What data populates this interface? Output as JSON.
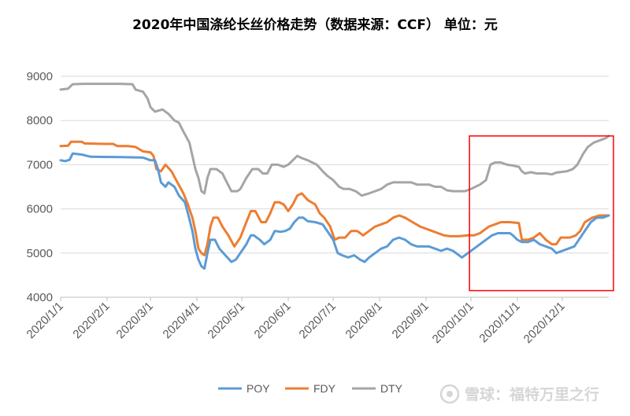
{
  "chart_data": {
    "type": "line",
    "title": "2020年中国涤纶长丝价格走势（数据来源：CCF）    单位：元",
    "xlabel": "",
    "ylabel": "",
    "ylim": [
      4000,
      9000
    ],
    "yticks": [
      4000,
      5000,
      6000,
      7000,
      8000,
      9000
    ],
    "x_categories": [
      "2020/1/1",
      "2020/2/1",
      "2020/3/1",
      "2020/4/1",
      "2020/5/1",
      "2020/6/1",
      "2020/7/1",
      "2020/8/1",
      "2020/9/1",
      "2020/10/1",
      "2020/11/1",
      "2020/12/1"
    ],
    "x_domain_days": [
      0,
      366
    ],
    "x_tick_days": [
      0,
      31,
      60,
      91,
      121,
      152,
      182,
      213,
      244,
      274,
      305,
      335
    ],
    "legend_position": "bottom",
    "grid": true,
    "series": [
      {
        "name": "POY",
        "color": "#5B9BD5",
        "points": [
          [
            0,
            7100
          ],
          [
            3,
            7080
          ],
          [
            6,
            7110
          ],
          [
            8,
            7250
          ],
          [
            14,
            7230
          ],
          [
            20,
            7180
          ],
          [
            40,
            7170
          ],
          [
            55,
            7160
          ],
          [
            60,
            7100
          ],
          [
            63,
            7100
          ],
          [
            65,
            6900
          ],
          [
            67,
            6600
          ],
          [
            70,
            6500
          ],
          [
            72,
            6600
          ],
          [
            76,
            6500
          ],
          [
            79,
            6300
          ],
          [
            83,
            6150
          ],
          [
            85,
            5900
          ],
          [
            88,
            5500
          ],
          [
            90,
            5100
          ],
          [
            92,
            4850
          ],
          [
            94,
            4700
          ],
          [
            96,
            4650
          ],
          [
            98,
            5000
          ],
          [
            100,
            5300
          ],
          [
            103,
            5300
          ],
          [
            106,
            5100
          ],
          [
            110,
            4950
          ],
          [
            114,
            4800
          ],
          [
            117,
            4850
          ],
          [
            120,
            5000
          ],
          [
            124,
            5200
          ],
          [
            127,
            5400
          ],
          [
            129,
            5400
          ],
          [
            133,
            5300
          ],
          [
            136,
            5200
          ],
          [
            140,
            5300
          ],
          [
            143,
            5500
          ],
          [
            147,
            5480
          ],
          [
            150,
            5500
          ],
          [
            153,
            5550
          ],
          [
            156,
            5700
          ],
          [
            159,
            5800
          ],
          [
            162,
            5800
          ],
          [
            165,
            5720
          ],
          [
            170,
            5700
          ],
          [
            175,
            5650
          ],
          [
            178,
            5500
          ],
          [
            182,
            5300
          ],
          [
            185,
            5000
          ],
          [
            188,
            4950
          ],
          [
            192,
            4900
          ],
          [
            196,
            4950
          ],
          [
            200,
            4850
          ],
          [
            203,
            4800
          ],
          [
            206,
            4900
          ],
          [
            210,
            5000
          ],
          [
            214,
            5100
          ],
          [
            218,
            5150
          ],
          [
            222,
            5300
          ],
          [
            226,
            5350
          ],
          [
            230,
            5300
          ],
          [
            234,
            5200
          ],
          [
            238,
            5150
          ],
          [
            242,
            5150
          ],
          [
            246,
            5150
          ],
          [
            250,
            5100
          ],
          [
            254,
            5050
          ],
          [
            258,
            5100
          ],
          [
            262,
            5050
          ],
          [
            266,
            4950
          ],
          [
            268,
            4900
          ],
          [
            272,
            5000
          ],
          [
            276,
            5100
          ],
          [
            280,
            5200
          ],
          [
            284,
            5300
          ],
          [
            288,
            5400
          ],
          [
            292,
            5450
          ],
          [
            296,
            5450
          ],
          [
            300,
            5450
          ],
          [
            302,
            5400
          ],
          [
            305,
            5300
          ],
          [
            308,
            5250
          ],
          [
            312,
            5250
          ],
          [
            316,
            5300
          ],
          [
            320,
            5200
          ],
          [
            324,
            5150
          ],
          [
            328,
            5100
          ],
          [
            331,
            5000
          ],
          [
            335,
            5050
          ],
          [
            339,
            5100
          ],
          [
            343,
            5150
          ],
          [
            346,
            5300
          ],
          [
            350,
            5500
          ],
          [
            354,
            5700
          ],
          [
            358,
            5800
          ],
          [
            362,
            5800
          ],
          [
            366,
            5850
          ]
        ]
      },
      {
        "name": "FDY",
        "color": "#ED7D31",
        "points": [
          [
            0,
            7420
          ],
          [
            5,
            7430
          ],
          [
            7,
            7520
          ],
          [
            14,
            7520
          ],
          [
            16,
            7480
          ],
          [
            30,
            7470
          ],
          [
            35,
            7470
          ],
          [
            38,
            7420
          ],
          [
            45,
            7420
          ],
          [
            50,
            7400
          ],
          [
            55,
            7300
          ],
          [
            60,
            7280
          ],
          [
            62,
            7200
          ],
          [
            64,
            6900
          ],
          [
            67,
            6850
          ],
          [
            70,
            7000
          ],
          [
            74,
            6850
          ],
          [
            78,
            6600
          ],
          [
            82,
            6350
          ],
          [
            85,
            6100
          ],
          [
            88,
            5800
          ],
          [
            90,
            5500
          ],
          [
            92,
            5100
          ],
          [
            94,
            5000
          ],
          [
            96,
            4950
          ],
          [
            98,
            5200
          ],
          [
            100,
            5600
          ],
          [
            102,
            5800
          ],
          [
            105,
            5800
          ],
          [
            108,
            5600
          ],
          [
            112,
            5400
          ],
          [
            116,
            5150
          ],
          [
            120,
            5350
          ],
          [
            124,
            5700
          ],
          [
            127,
            5950
          ],
          [
            130,
            5950
          ],
          [
            134,
            5700
          ],
          [
            137,
            5700
          ],
          [
            140,
            5900
          ],
          [
            143,
            6150
          ],
          [
            146,
            6150
          ],
          [
            149,
            6100
          ],
          [
            152,
            5950
          ],
          [
            155,
            6100
          ],
          [
            158,
            6300
          ],
          [
            161,
            6350
          ],
          [
            165,
            6200
          ],
          [
            170,
            6100
          ],
          [
            173,
            5900
          ],
          [
            176,
            5800
          ],
          [
            180,
            5600
          ],
          [
            183,
            5300
          ],
          [
            186,
            5350
          ],
          [
            190,
            5350
          ],
          [
            194,
            5500
          ],
          [
            198,
            5500
          ],
          [
            202,
            5400
          ],
          [
            206,
            5500
          ],
          [
            210,
            5600
          ],
          [
            214,
            5650
          ],
          [
            218,
            5700
          ],
          [
            222,
            5800
          ],
          [
            226,
            5850
          ],
          [
            230,
            5800
          ],
          [
            235,
            5700
          ],
          [
            240,
            5600
          ],
          [
            244,
            5550
          ],
          [
            248,
            5500
          ],
          [
            252,
            5450
          ],
          [
            256,
            5400
          ],
          [
            260,
            5380
          ],
          [
            266,
            5380
          ],
          [
            272,
            5400
          ],
          [
            276,
            5400
          ],
          [
            280,
            5450
          ],
          [
            286,
            5600
          ],
          [
            290,
            5650
          ],
          [
            294,
            5700
          ],
          [
            300,
            5700
          ],
          [
            306,
            5680
          ],
          [
            308,
            5300
          ],
          [
            312,
            5300
          ],
          [
            316,
            5350
          ],
          [
            320,
            5450
          ],
          [
            324,
            5300
          ],
          [
            328,
            5200
          ],
          [
            331,
            5200
          ],
          [
            334,
            5350
          ],
          [
            340,
            5350
          ],
          [
            344,
            5400
          ],
          [
            347,
            5500
          ],
          [
            350,
            5700
          ],
          [
            355,
            5800
          ],
          [
            360,
            5850
          ],
          [
            366,
            5850
          ]
        ]
      },
      {
        "name": "DTY",
        "color": "#A5A5A5",
        "points": [
          [
            0,
            8700
          ],
          [
            5,
            8720
          ],
          [
            8,
            8820
          ],
          [
            15,
            8830
          ],
          [
            30,
            8830
          ],
          [
            40,
            8830
          ],
          [
            48,
            8820
          ],
          [
            50,
            8700
          ],
          [
            55,
            8650
          ],
          [
            58,
            8500
          ],
          [
            60,
            8300
          ],
          [
            63,
            8200
          ],
          [
            68,
            8250
          ],
          [
            72,
            8150
          ],
          [
            76,
            8000
          ],
          [
            79,
            7950
          ],
          [
            82,
            7750
          ],
          [
            86,
            7500
          ],
          [
            88,
            7200
          ],
          [
            90,
            6900
          ],
          [
            92,
            6700
          ],
          [
            94,
            6400
          ],
          [
            96,
            6350
          ],
          [
            98,
            6700
          ],
          [
            100,
            6900
          ],
          [
            104,
            6900
          ],
          [
            108,
            6800
          ],
          [
            111,
            6600
          ],
          [
            114,
            6400
          ],
          [
            118,
            6400
          ],
          [
            120,
            6450
          ],
          [
            124,
            6700
          ],
          [
            128,
            6900
          ],
          [
            132,
            6900
          ],
          [
            135,
            6800
          ],
          [
            138,
            6800
          ],
          [
            141,
            7000
          ],
          [
            145,
            7000
          ],
          [
            149,
            6950
          ],
          [
            152,
            7000
          ],
          [
            155,
            7100
          ],
          [
            158,
            7200
          ],
          [
            161,
            7150
          ],
          [
            165,
            7100
          ],
          [
            168,
            7050
          ],
          [
            171,
            7000
          ],
          [
            175,
            6850
          ],
          [
            178,
            6750
          ],
          [
            182,
            6650
          ],
          [
            186,
            6500
          ],
          [
            189,
            6450
          ],
          [
            193,
            6450
          ],
          [
            197,
            6400
          ],
          [
            201,
            6300
          ],
          [
            206,
            6350
          ],
          [
            210,
            6400
          ],
          [
            214,
            6450
          ],
          [
            218,
            6550
          ],
          [
            222,
            6600
          ],
          [
            226,
            6600
          ],
          [
            230,
            6600
          ],
          [
            234,
            6600
          ],
          [
            238,
            6550
          ],
          [
            242,
            6550
          ],
          [
            246,
            6550
          ],
          [
            250,
            6500
          ],
          [
            254,
            6500
          ],
          [
            258,
            6420
          ],
          [
            262,
            6400
          ],
          [
            266,
            6400
          ],
          [
            270,
            6400
          ],
          [
            274,
            6450
          ],
          [
            280,
            6550
          ],
          [
            284,
            6650
          ],
          [
            287,
            7000
          ],
          [
            290,
            7050
          ],
          [
            294,
            7050
          ],
          [
            298,
            7000
          ],
          [
            302,
            6980
          ],
          [
            306,
            6950
          ],
          [
            308,
            6850
          ],
          [
            310,
            6800
          ],
          [
            314,
            6830
          ],
          [
            318,
            6800
          ],
          [
            324,
            6800
          ],
          [
            328,
            6780
          ],
          [
            331,
            6820
          ],
          [
            338,
            6850
          ],
          [
            342,
            6900
          ],
          [
            345,
            7000
          ],
          [
            349,
            7250
          ],
          [
            352,
            7400
          ],
          [
            356,
            7500
          ],
          [
            360,
            7550
          ],
          [
            364,
            7600
          ],
          [
            366,
            7650
          ]
        ]
      }
    ]
  },
  "highlight_box": {
    "from_day": 273,
    "to_day": 366,
    "ymin": 4150,
    "ymax": 7650,
    "color": "#FF0000"
  },
  "watermark": "雪球：福特万里之行"
}
